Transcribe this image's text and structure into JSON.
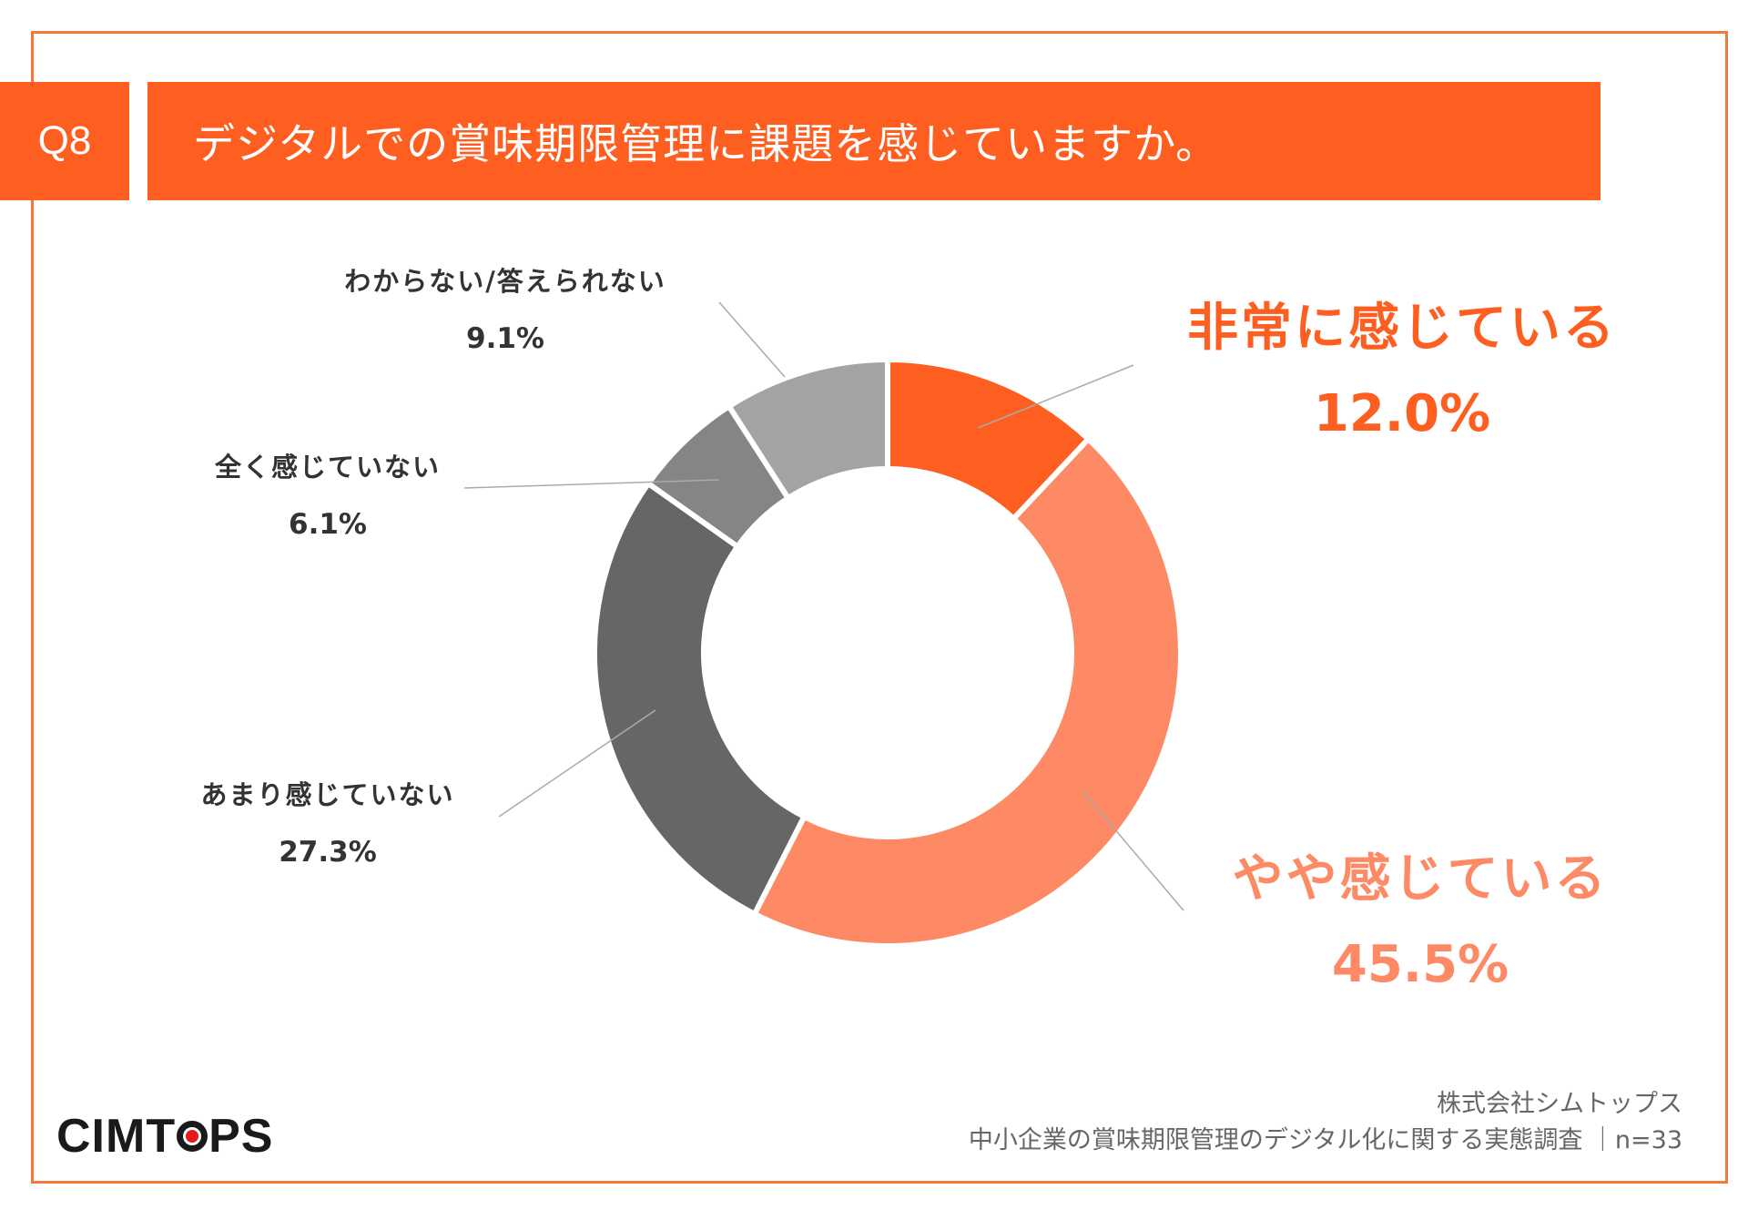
{
  "header": {
    "question_number": "Q8",
    "question_text": "デジタルでの賞味期限管理に課題を感じていますか。"
  },
  "chart_data": {
    "type": "pie",
    "variant": "donut",
    "title": "",
    "slices": [
      {
        "label": "非常に感じている",
        "value": 12.0,
        "display": "12.0%",
        "color": "#fe5e20"
      },
      {
        "label": "やや感じている",
        "value": 45.5,
        "display": "45.5%",
        "color": "#fd8a64"
      },
      {
        "label": "あまり感じていない",
        "value": 27.3,
        "display": "27.3%",
        "color": "#666666"
      },
      {
        "label": "全く感じていない",
        "value": 6.1,
        "display": "6.1%",
        "color": "#858585"
      },
      {
        "label": "わからない/答えられない",
        "value": 9.1,
        "display": "9.1%",
        "color": "#a3a3a3"
      }
    ]
  },
  "footer": {
    "logo_text_left": "CIMT",
    "logo_text_right": "PS",
    "company": "株式会社シムトップス",
    "survey": "中小企業の賞味期限管理のデジタル化に関する実態調査 ｜n=33"
  },
  "colors": {
    "accent": "#fe5e20",
    "frame": "#f07a3c",
    "logo_dot": "#e8191b"
  }
}
